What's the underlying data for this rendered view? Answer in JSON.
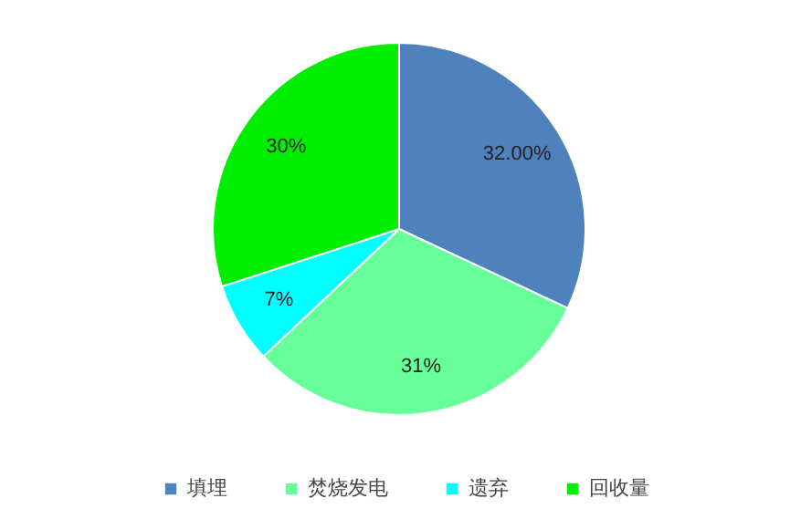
{
  "chart_data": {
    "type": "pie",
    "categories": [
      "填埋",
      "焚烧发电",
      "遗弃",
      "回收量"
    ],
    "values": [
      32,
      31,
      7,
      30
    ],
    "value_labels": [
      "32.00%",
      "31%",
      "7%",
      "30%"
    ],
    "colors": [
      "#4f81bd",
      "#66ff99",
      "#00ffff",
      "#00ee00"
    ],
    "legend": "bottom"
  }
}
